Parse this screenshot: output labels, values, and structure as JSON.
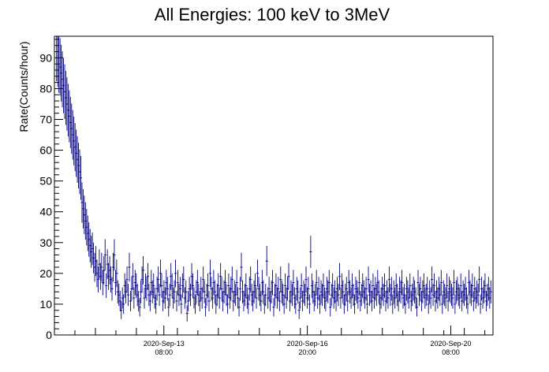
{
  "chart_data": {
    "type": "scatter",
    "title": "All Energies:  100 keV to 3MeV",
    "xlabel": "",
    "ylabel": "Rate(Counts/hour)",
    "ylim": [
      0,
      97
    ],
    "yticks": [
      0,
      10,
      20,
      30,
      40,
      50,
      60,
      70,
      80,
      90
    ],
    "xticks": [
      {
        "date": "2020-Sep-13",
        "time": "08:00"
      },
      {
        "date": "2020-Sep-16",
        "time": "20:00"
      },
      {
        "date": "2020-Sep-20",
        "time": "08:00"
      }
    ],
    "x_range_days": 10.7,
    "series": [
      {
        "color": "#000080",
        "error_bars": "sqrt(y)",
        "y": [
          92,
          90,
          88,
          87,
          85,
          83,
          81,
          79,
          77,
          75,
          73,
          71,
          69,
          67,
          65,
          63,
          61,
          59,
          57,
          55,
          53,
          51,
          43,
          41,
          39,
          37,
          35,
          33,
          31,
          29,
          27,
          28,
          25,
          22,
          24,
          20,
          18,
          23,
          19,
          22,
          17,
          21,
          26,
          16,
          23,
          19,
          21,
          18,
          15,
          22,
          26,
          17,
          20,
          14,
          13,
          11,
          8,
          12,
          10,
          16,
          14,
          18,
          13,
          22,
          11,
          15,
          19,
          12,
          17,
          16,
          13,
          11,
          9,
          14,
          18,
          21,
          12,
          16,
          15,
          19,
          13,
          11,
          17,
          14,
          16,
          12,
          10,
          15,
          18,
          13,
          20,
          16,
          11,
          14,
          12,
          17,
          15,
          9,
          13,
          19,
          16,
          12,
          14,
          20,
          11,
          17,
          13,
          15,
          10,
          16,
          18,
          12,
          14,
          7,
          11,
          15,
          13,
          19,
          16,
          12,
          10,
          14,
          17,
          13,
          11,
          15,
          12,
          18,
          14,
          9,
          13,
          16,
          11,
          20,
          15,
          12,
          17,
          14,
          10,
          13,
          16,
          12,
          19,
          15,
          11,
          14,
          17,
          13,
          10,
          16,
          12,
          15,
          18,
          11,
          14,
          13,
          17,
          12,
          9,
          15,
          22,
          14,
          11,
          13,
          16,
          12,
          10,
          15,
          18,
          13,
          11,
          14,
          16,
          12,
          20,
          15,
          13,
          11,
          17,
          14,
          10,
          13,
          24,
          12,
          15,
          11,
          14,
          17,
          9,
          13,
          16,
          12,
          15,
          11,
          18,
          14,
          13,
          10,
          16,
          12,
          15,
          19,
          11,
          14,
          13,
          17,
          12,
          10,
          15,
          14,
          8,
          12,
          16,
          11,
          14,
          13,
          18,
          12,
          15,
          10,
          27,
          16,
          14,
          11,
          13,
          17,
          12,
          15,
          10,
          14,
          13,
          16,
          12,
          11,
          15,
          14,
          17,
          9,
          13,
          16,
          12,
          14,
          11,
          15,
          13,
          19,
          12,
          16,
          14,
          10,
          13,
          15,
          11,
          17,
          14,
          12,
          16,
          13,
          10,
          15,
          14,
          12,
          17,
          11,
          13,
          16,
          14,
          12,
          15,
          10,
          18,
          13,
          14,
          11,
          16,
          12,
          15,
          13,
          17,
          14,
          10,
          12,
          15,
          13,
          16,
          11,
          14,
          12,
          18,
          13,
          15,
          10,
          14,
          12,
          16,
          13,
          11,
          15,
          14,
          17,
          12,
          13,
          10,
          15,
          14,
          12,
          16,
          11,
          13,
          15,
          14,
          12,
          9,
          17,
          13,
          15,
          11,
          14,
          16,
          12,
          13,
          15,
          10,
          14,
          12,
          18,
          13,
          16,
          11,
          14,
          12,
          15,
          13,
          17,
          10,
          14,
          13,
          12,
          16,
          11,
          15,
          14,
          13,
          12,
          17,
          10,
          14,
          15,
          13,
          12,
          16,
          11,
          14,
          13,
          15,
          12,
          10,
          17,
          14,
          13,
          16,
          11,
          15,
          12,
          14,
          13,
          18,
          10,
          15,
          12,
          14,
          16,
          11,
          13,
          15,
          12,
          14
        ]
      }
    ]
  }
}
